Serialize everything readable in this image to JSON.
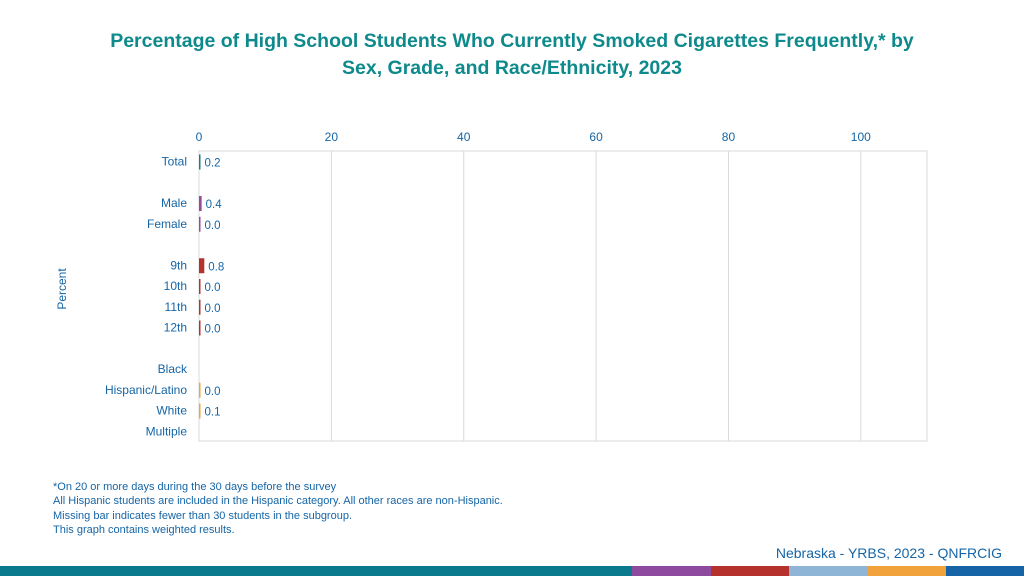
{
  "header": {
    "title_line1": "Percentage of High School Students Who Currently Smoked Cigarettes Frequently,* by",
    "title_line2": "Sex, Grade, and Race/Ethnicity, 2023"
  },
  "chart_data": {
    "type": "bar",
    "orientation": "horizontal",
    "ylabel": "Percent",
    "xlim": [
      0,
      110
    ],
    "x_ticks": [
      "0",
      "20",
      "40",
      "60",
      "80",
      "100"
    ],
    "grid": true,
    "categories": [
      "Total",
      "Male",
      "Female",
      "9th",
      "10th",
      "11th",
      "12th",
      "Black",
      "Hispanic/Latino",
      "White",
      "Multiple"
    ],
    "values": [
      0.2,
      0.4,
      0.0,
      0.8,
      0.0,
      0.0,
      0.0,
      null,
      0.0,
      0.1,
      null
    ],
    "value_labels": [
      "0.2",
      "0.4",
      "0.0",
      "0.8",
      "0.0",
      "0.0",
      "0.0",
      "",
      "0.0",
      "0.1",
      ""
    ],
    "bar_colors": [
      "#1b7d86",
      "#9b4a9b",
      "#9b4a9b",
      "#b5312c",
      "#b5312c",
      "#b5312c",
      "#b5312c",
      "#f2a23a",
      "#f2a23a",
      "#f2a23a",
      "#f2a23a"
    ]
  },
  "footnotes": [
    "*On 20 or more days during the 30 days before the survey",
    "All Hispanic students are included in the Hispanic category.  All other races are non-Hispanic.",
    "Missing bar indicates fewer than 30 students in the subgroup.",
    "This graph contains weighted results."
  ],
  "source": "Nebraska - YRBS, 2023 - QNFRCIG",
  "colors": {
    "title": "#0f8a8c",
    "text": "#1565a6",
    "grid": "#d9d9d9"
  },
  "bottom_bar_colors": [
    "#0b7a8c",
    "#8e4a9e",
    "#b5312c",
    "#8fb5d6",
    "#f2a23a",
    "#1565a6"
  ]
}
